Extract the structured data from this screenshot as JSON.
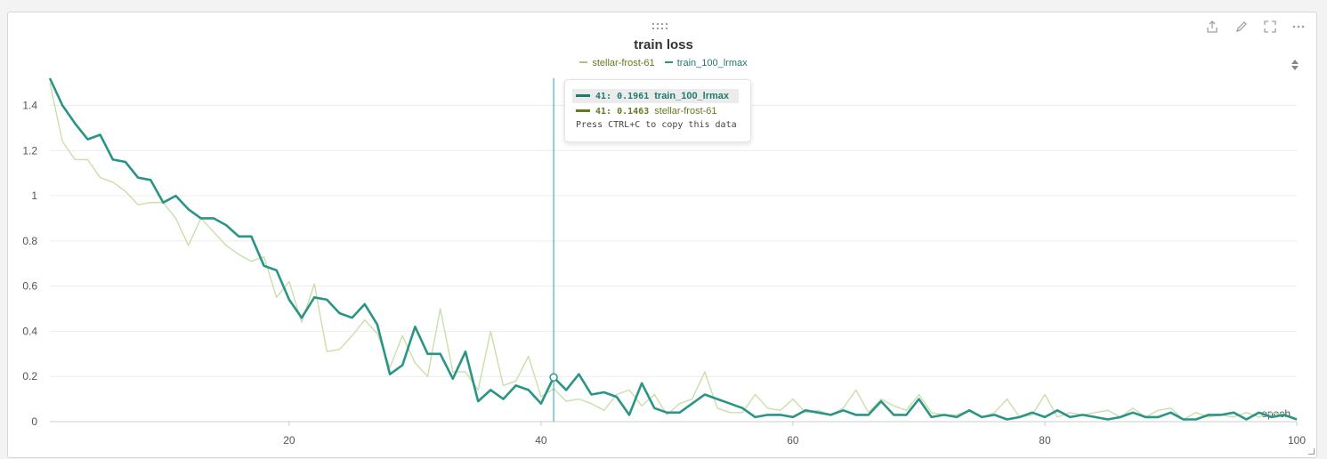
{
  "panel": {
    "toolbar_icons": [
      "export-icon",
      "edit-icon",
      "fullscreen-icon",
      "more-icon"
    ]
  },
  "chart_data": {
    "type": "line",
    "title": "train loss",
    "xlabel": "epoch",
    "ylabel": "",
    "xlim": [
      1,
      100
    ],
    "ylim": [
      0,
      1.52
    ],
    "x_ticks": [
      20,
      40,
      60,
      80,
      100
    ],
    "y_ticks": [
      0,
      0.2,
      0.4,
      0.6,
      0.8,
      1,
      1.2,
      1.4
    ],
    "y_tick_labels": [
      "0",
      "0.2",
      "0.4",
      "0.6",
      "0.8",
      "1",
      "1.2",
      "1.4"
    ],
    "x_tick_labels": [
      "20",
      "40",
      "60",
      "80",
      "100"
    ],
    "grid": true,
    "legend_position": "top-center",
    "hover_step": 41,
    "series": [
      {
        "name": "stellar-frost-61",
        "color": "#c9dfa8",
        "values": [
          1.5,
          1.24,
          1.16,
          1.16,
          1.08,
          1.06,
          1.02,
          0.96,
          0.97,
          0.97,
          0.9,
          0.78,
          0.9,
          0.84,
          0.78,
          0.74,
          0.71,
          0.73,
          0.55,
          0.62,
          0.44,
          0.61,
          0.31,
          0.32,
          0.38,
          0.45,
          0.39,
          0.24,
          0.38,
          0.26,
          0.2,
          0.5,
          0.22,
          0.22,
          0.14,
          0.4,
          0.16,
          0.18,
          0.29,
          0.11,
          0.146,
          0.09,
          0.1,
          0.08,
          0.05,
          0.12,
          0.14,
          0.07,
          0.12,
          0.03,
          0.08,
          0.1,
          0.22,
          0.06,
          0.04,
          0.04,
          0.12,
          0.06,
          0.05,
          0.1,
          0.04,
          0.05,
          0.03,
          0.06,
          0.14,
          0.04,
          0.1,
          0.07,
          0.05,
          0.12,
          0.04,
          0.03,
          0.03,
          0.05,
          0.02,
          0.04,
          0.1,
          0.02,
          0.03,
          0.12,
          0.02,
          0.04,
          0.03,
          0.04,
          0.05,
          0.02,
          0.06,
          0.02,
          0.05,
          0.06,
          0.01,
          0.04,
          0.02,
          0.03,
          0.02,
          0.04,
          0.02,
          0.04,
          0.03,
          0.01
        ]
      },
      {
        "name": "train_100_lrmax",
        "color": "#2a9585",
        "values": [
          1.52,
          1.4,
          1.32,
          1.25,
          1.27,
          1.16,
          1.15,
          1.08,
          1.07,
          0.97,
          1.0,
          0.94,
          0.9,
          0.9,
          0.87,
          0.82,
          0.82,
          0.69,
          0.67,
          0.54,
          0.46,
          0.55,
          0.54,
          0.48,
          0.46,
          0.52,
          0.43,
          0.21,
          0.25,
          0.42,
          0.3,
          0.3,
          0.19,
          0.31,
          0.09,
          0.14,
          0.1,
          0.16,
          0.14,
          0.08,
          0.1961,
          0.14,
          0.21,
          0.12,
          0.13,
          0.11,
          0.03,
          0.17,
          0.06,
          0.04,
          0.04,
          0.08,
          0.12,
          0.1,
          0.08,
          0.06,
          0.02,
          0.03,
          0.03,
          0.02,
          0.05,
          0.04,
          0.03,
          0.05,
          0.03,
          0.03,
          0.09,
          0.03,
          0.03,
          0.1,
          0.02,
          0.03,
          0.02,
          0.05,
          0.02,
          0.03,
          0.01,
          0.02,
          0.04,
          0.02,
          0.05,
          0.02,
          0.03,
          0.02,
          0.01,
          0.02,
          0.04,
          0.02,
          0.02,
          0.04,
          0.01,
          0.01,
          0.03,
          0.03,
          0.04,
          0.01,
          0.04,
          0.02,
          0.03,
          0.01
        ]
      }
    ],
    "tooltip": {
      "rows": [
        {
          "step": "41:",
          "value": "0.1961",
          "name": "train_100_lrmax",
          "color": "#1f7a6e"
        },
        {
          "step": "41:",
          "value": "0.1463",
          "name": "stellar-frost-61",
          "color": "#5f7d1f"
        }
      ],
      "footer": "Press CTRL+C to copy this data"
    }
  }
}
